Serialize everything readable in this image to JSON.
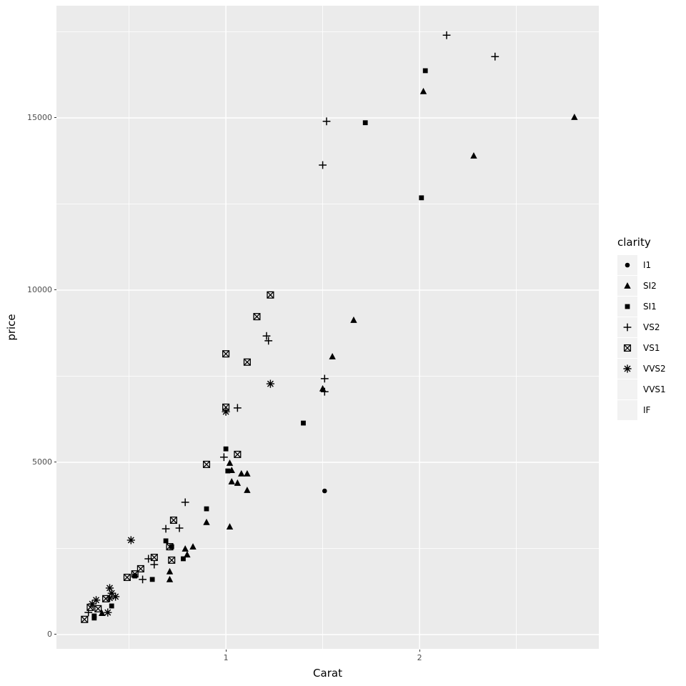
{
  "x_axis_title": "Carat",
  "y_axis_title": "price",
  "legend_title": "clarity",
  "chart_data": {
    "type": "scatter",
    "xlabel": "Carat",
    "ylabel": "price",
    "legend_title": "clarity",
    "legend_position": "right",
    "grid": "on",
    "xlim": [
      0.125,
      2.926
    ],
    "ylim": [
      -415,
      18257
    ],
    "x_ticks": [
      {
        "value": 1,
        "label": "1"
      },
      {
        "value": 2,
        "label": "2"
      }
    ],
    "x_minor": [
      0.5,
      1.5,
      2.5
    ],
    "y_ticks": [
      {
        "value": 0,
        "label": "0"
      },
      {
        "value": 5000,
        "label": "5000"
      },
      {
        "value": 10000,
        "label": "10000"
      },
      {
        "value": 15000,
        "label": "15000"
      }
    ],
    "y_minor": [
      2500,
      7500,
      12500,
      17500
    ],
    "colors": {
      "panel_bg": "#EBEBEB",
      "grid": "#FFFFFF",
      "point": "#000000",
      "tick_label": "#4D4D4D",
      "tick_mark": "#333333",
      "legend_key_bg": "#F2F2F2"
    },
    "series": [
      {
        "name": "I1",
        "shape": "circle",
        "points": [
          [
            1.51,
            4170
          ]
        ]
      },
      {
        "name": "SI2",
        "shape": "triangle",
        "points": [
          [
            2.02,
            15770
          ],
          [
            2.8,
            15020
          ],
          [
            2.28,
            13900
          ],
          [
            1.66,
            9130
          ],
          [
            1.55,
            8070
          ],
          [
            1.5,
            7140
          ],
          [
            1.02,
            4980
          ],
          [
            1.03,
            4770
          ],
          [
            1.08,
            4670
          ],
          [
            1.11,
            4670
          ],
          [
            1.03,
            4440
          ],
          [
            1.06,
            4400
          ],
          [
            1.11,
            4190
          ],
          [
            1.02,
            3130
          ],
          [
            0.9,
            3260
          ],
          [
            0.83,
            2550
          ],
          [
            0.79,
            2490
          ],
          [
            0.8,
            2320
          ],
          [
            0.71,
            1830
          ],
          [
            0.71,
            1600
          ],
          [
            0.36,
            620
          ]
        ]
      },
      {
        "name": "SI1",
        "shape": "square",
        "points": [
          [
            2.03,
            16370
          ],
          [
            1.72,
            14860
          ],
          [
            2.01,
            12680
          ],
          [
            1.4,
            6140
          ],
          [
            1.0,
            5390
          ],
          [
            1.01,
            4750
          ],
          [
            0.9,
            3650
          ],
          [
            0.69,
            2720
          ],
          [
            0.72,
            2550
          ],
          [
            0.78,
            2200
          ],
          [
            0.62,
            1600
          ],
          [
            0.53,
            1700
          ],
          [
            0.41,
            830
          ],
          [
            0.32,
            540
          ],
          [
            0.32,
            480
          ]
        ]
      },
      {
        "name": "VS2",
        "shape": "plus",
        "points": [
          [
            2.14,
            17400
          ],
          [
            2.39,
            16780
          ],
          [
            1.52,
            14900
          ],
          [
            1.5,
            13630
          ],
          [
            1.21,
            8670
          ],
          [
            1.22,
            8530
          ],
          [
            1.51,
            7430
          ],
          [
            1.51,
            7050
          ],
          [
            1.06,
            6580
          ],
          [
            0.99,
            5150
          ],
          [
            0.79,
            3840
          ],
          [
            0.69,
            3070
          ],
          [
            0.76,
            3090
          ],
          [
            0.63,
            2030
          ],
          [
            0.6,
            2200
          ],
          [
            0.57,
            1600
          ],
          [
            0.29,
            640
          ]
        ]
      },
      {
        "name": "VS1",
        "shape": "box-x",
        "points": [
          [
            1.23,
            9860
          ],
          [
            1.16,
            9230
          ],
          [
            1.0,
            8150
          ],
          [
            1.11,
            7910
          ],
          [
            1.0,
            6600
          ],
          [
            1.06,
            5230
          ],
          [
            0.9,
            4940
          ],
          [
            0.73,
            3320
          ],
          [
            0.71,
            2550
          ],
          [
            0.72,
            2160
          ],
          [
            0.63,
            2240
          ],
          [
            0.56,
            1910
          ],
          [
            0.53,
            1760
          ],
          [
            0.49,
            1660
          ],
          [
            0.38,
            1040
          ],
          [
            0.3,
            790
          ],
          [
            0.34,
            750
          ],
          [
            0.27,
            440
          ]
        ]
      },
      {
        "name": "VVS2",
        "shape": "asterisk",
        "points": [
          [
            1.23,
            7280
          ],
          [
            1.0,
            6470
          ],
          [
            0.51,
            2740
          ],
          [
            0.4,
            1350
          ],
          [
            0.41,
            1200
          ],
          [
            0.43,
            1100
          ],
          [
            0.4,
            1060
          ],
          [
            0.33,
            1000
          ],
          [
            0.31,
            890
          ],
          [
            0.39,
            640
          ]
        ]
      },
      {
        "name": "VVS1",
        "shape": "none",
        "points": []
      },
      {
        "name": "IF",
        "shape": "none",
        "points": []
      }
    ]
  }
}
